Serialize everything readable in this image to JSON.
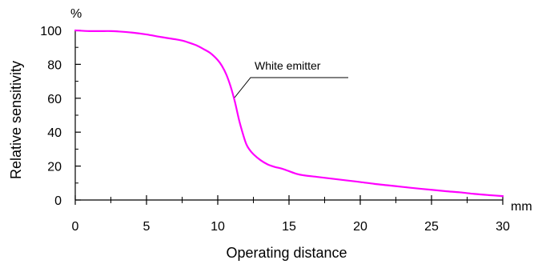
{
  "chart_data": {
    "type": "line",
    "xlabel": "Operating distance",
    "ylabel": "Relative sensitivity",
    "x_unit": "mm",
    "y_unit": "%",
    "xlim": [
      0,
      30
    ],
    "ylim": [
      0,
      100
    ],
    "x_ticks": [
      0,
      5,
      10,
      15,
      20,
      25,
      30
    ],
    "y_ticks": [
      0,
      20,
      40,
      60,
      80,
      100
    ],
    "grid": false,
    "series": [
      {
        "name": "White emitter",
        "color": "#ff00ff",
        "x": [
          0,
          1,
          2,
          2.5,
          3,
          4,
          5,
          6,
          7,
          7.5,
          8,
          8.5,
          9,
          9.5,
          10,
          10.3,
          10.6,
          10.9,
          11.2,
          11.5,
          11.8,
          12.0,
          12.2,
          12.5,
          13.0,
          13.5,
          14.0,
          14.5,
          15.0,
          15.5,
          16,
          17,
          18,
          19,
          20,
          21,
          22,
          23,
          24,
          25,
          26,
          27,
          28,
          29,
          30
        ],
        "y": [
          100,
          99.6,
          99.6,
          99.6,
          99.4,
          98.7,
          97.6,
          96.1,
          94.8,
          94.0,
          92.7,
          91.2,
          89.0,
          86.5,
          82.5,
          79.0,
          74.0,
          67.0,
          58.0,
          47.0,
          38.0,
          33.0,
          30.0,
          27.0,
          23.5,
          21.0,
          19.5,
          18.5,
          17.0,
          15.5,
          14.6,
          13.6,
          12.6,
          11.6,
          10.6,
          9.5,
          8.6,
          7.7,
          6.8,
          6.0,
          5.2,
          4.5,
          3.6,
          2.9,
          2.3
        ]
      }
    ],
    "annotations": [
      {
        "text": "White emitter"
      }
    ]
  }
}
